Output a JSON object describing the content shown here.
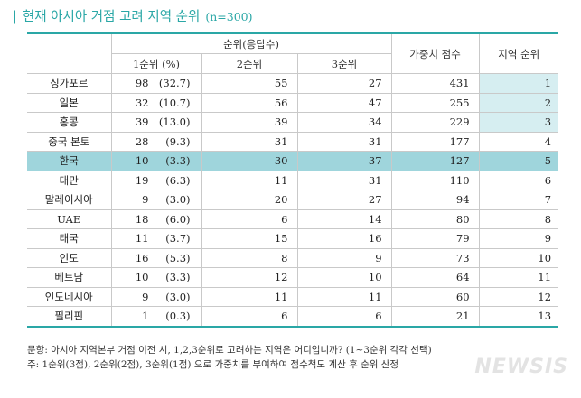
{
  "title": {
    "bar": "|",
    "text": "현재 아시아 거점 고려 지역 순위",
    "n": "(n=300)"
  },
  "headers": {
    "group": "순위(응답수)",
    "rank1": "1순위 (%)",
    "rank2": "2순위",
    "rank3": "3순위",
    "weighted": "가중치 점수",
    "region_rank": "지역 순위"
  },
  "rows": [
    {
      "label": "싱가포르",
      "r1": "98",
      "pct": "(32.7)",
      "r2": "55",
      "r3": "27",
      "score": "431",
      "rank": "1"
    },
    {
      "label": "일본",
      "r1": "32",
      "pct": "(10.7)",
      "r2": "56",
      "r3": "47",
      "score": "255",
      "rank": "2"
    },
    {
      "label": "홍콩",
      "r1": "39",
      "pct": "(13.0)",
      "r2": "39",
      "r3": "34",
      "score": "229",
      "rank": "3"
    },
    {
      "label": "중국 본토",
      "r1": "28",
      "pct": "(9.3)",
      "r2": "31",
      "r3": "31",
      "score": "177",
      "rank": "4"
    },
    {
      "label": "한국",
      "r1": "10",
      "pct": "(3.3)",
      "r2": "30",
      "r3": "37",
      "score": "127",
      "rank": "5"
    },
    {
      "label": "대만",
      "r1": "19",
      "pct": "(6.3)",
      "r2": "11",
      "r3": "31",
      "score": "110",
      "rank": "6"
    },
    {
      "label": "말레이시아",
      "r1": "9",
      "pct": "(3.0)",
      "r2": "20",
      "r3": "27",
      "score": "94",
      "rank": "7"
    },
    {
      "label": "UAE",
      "r1": "18",
      "pct": "(6.0)",
      "r2": "6",
      "r3": "14",
      "score": "80",
      "rank": "8"
    },
    {
      "label": "태국",
      "r1": "11",
      "pct": "(3.7)",
      "r2": "15",
      "r3": "16",
      "score": "79",
      "rank": "9"
    },
    {
      "label": "인도",
      "r1": "16",
      "pct": "(5.3)",
      "r2": "8",
      "r3": "9",
      "score": "73",
      "rank": "10"
    },
    {
      "label": "베트남",
      "r1": "10",
      "pct": "(3.3)",
      "r2": "12",
      "r3": "10",
      "score": "64",
      "rank": "11"
    },
    {
      "label": "인도네시아",
      "r1": "9",
      "pct": "(3.0)",
      "r2": "11",
      "r3": "11",
      "score": "60",
      "rank": "12"
    },
    {
      "label": "필리핀",
      "r1": "1",
      "pct": "(0.3)",
      "r2": "6",
      "r3": "6",
      "score": "21",
      "rank": "13"
    }
  ],
  "notes": {
    "line1": "문항: 아시아 지역본부 거점 이전 시, 1,2,3순위로 고려하는 지역은 어디입니까? (1~3순위 각각 선택)",
    "line2": "주: 1순위(3점), 2순위(2점), 3순위(1점) 으로 가중치를 부여하여 점수척도 계산 후 순위 산정"
  },
  "watermark": "NEWSIS",
  "colors": {
    "accent": "#2aa7a6",
    "korea_row": "#9fd5dc",
    "rank_highlight": "#d6eef1"
  }
}
